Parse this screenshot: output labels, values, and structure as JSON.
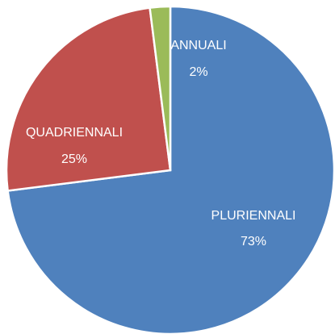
{
  "chart_data": {
    "type": "pie",
    "categories": [
      "PLURIENNALI",
      "QUADRIENNALI",
      "ANNUALI"
    ],
    "values": [
      73,
      25,
      2
    ],
    "value_labels": [
      "73%",
      "25%",
      "2%"
    ],
    "colors": [
      "#4f81bd",
      "#c0504d",
      "#9bbb59"
    ]
  }
}
